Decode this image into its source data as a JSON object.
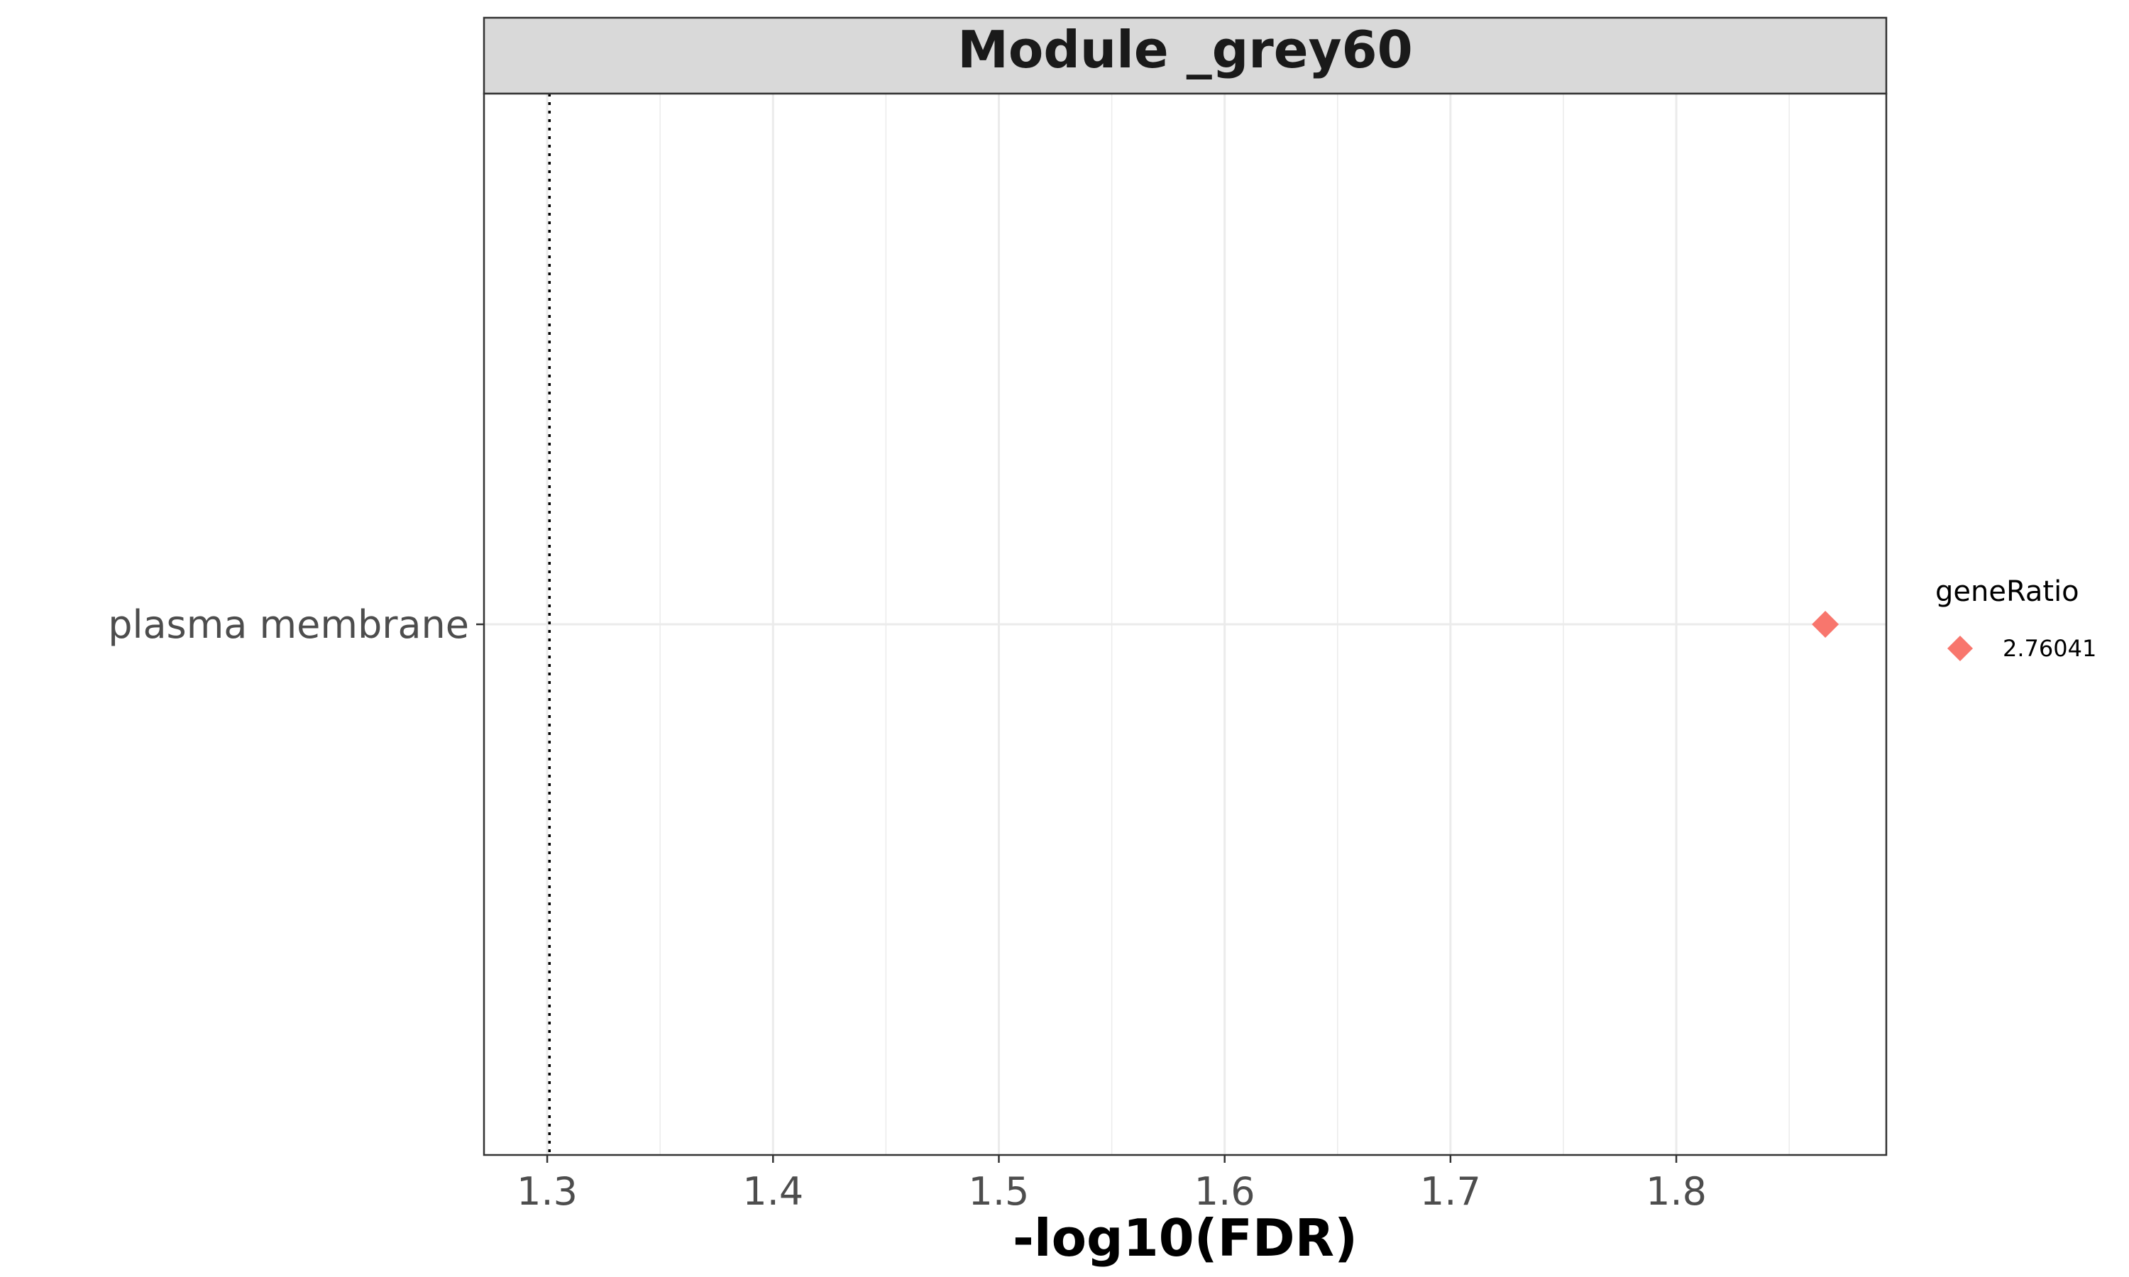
{
  "chart_data": {
    "type": "scatter",
    "title": "Module _grey60",
    "xlabel": "-log10(FDR)",
    "ylabel": "",
    "xlim": [
      1.272,
      1.893
    ],
    "x_ticks": [
      "1.3",
      "1.4",
      "1.5",
      "1.6",
      "1.7",
      "1.8"
    ],
    "x_tick_values": [
      1.3,
      1.4,
      1.5,
      1.6,
      1.7,
      1.8
    ],
    "categories": [
      "plasma membrane"
    ],
    "points": [
      {
        "category": "plasma membrane",
        "x": 1.866,
        "geneRatio": "2.76041"
      }
    ],
    "reference_line": {
      "x": 1.301,
      "style": "dotted"
    },
    "legend": {
      "title": "geneRatio",
      "entries": [
        "2.76041"
      ],
      "placement": "right"
    },
    "colors": {
      "point": "#F8766D",
      "strip_background": "#D9D9D9",
      "grid": "#EBEBEB",
      "panel_border": "#333333"
    },
    "grid": true,
    "marker": "diamond"
  }
}
